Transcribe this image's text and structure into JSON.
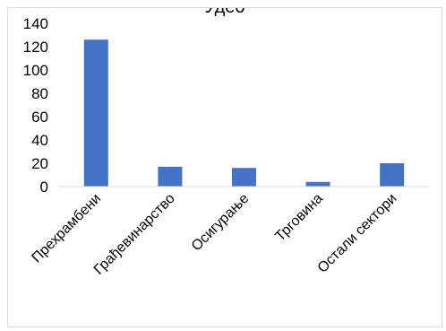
{
  "chart_data": {
    "type": "bar",
    "title": "Удео",
    "categories": [
      "Прехрамбени",
      "Грађевинарство",
      "Осигурање",
      "Трговина",
      "Остали сектори"
    ],
    "values": [
      126,
      17,
      16,
      4,
      20
    ],
    "ylim": [
      0,
      140
    ],
    "yticks": [
      0,
      20,
      40,
      60,
      80,
      100,
      120,
      140
    ],
    "bar_color": "#4472c4",
    "axis_color": "#d9d9d9",
    "grid": false,
    "legend": "none"
  }
}
